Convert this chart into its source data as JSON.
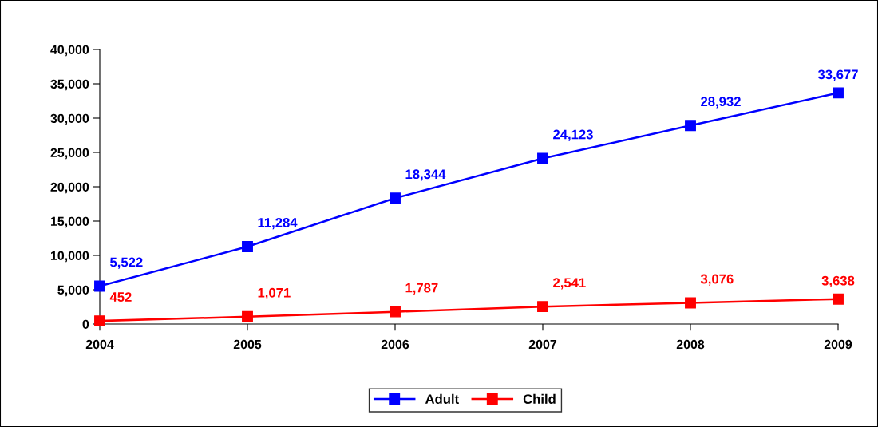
{
  "chart_data": {
    "type": "line",
    "categories": [
      "2004",
      "2005",
      "2006",
      "2007",
      "2008",
      "2009"
    ],
    "series": [
      {
        "name": "Adult",
        "color": "#0000ff",
        "values": [
          5522,
          11284,
          18344,
          24123,
          28932,
          33677
        ],
        "value_labels": [
          "5,522",
          "11,284",
          "18,344",
          "24,123",
          "28,932",
          "33,677"
        ]
      },
      {
        "name": "Child",
        "color": "#ff0000",
        "values": [
          452,
          1071,
          1787,
          2541,
          3076,
          3638
        ],
        "value_labels": [
          "452",
          "1,071",
          "1,787",
          "2,541",
          "3,076",
          "3,638"
        ]
      }
    ],
    "ylim": [
      0,
      40000
    ],
    "yticks": [
      0,
      {
        "value": 5000,
        "label": "5,000"
      },
      {
        "value": 10000,
        "label": "10,000"
      },
      {
        "value": 15000,
        "label": "15,000"
      },
      {
        "value": 20000,
        "label": "20,000"
      },
      {
        "value": 25000,
        "label": "25,000"
      },
      {
        "value": 30000,
        "label": "30,000"
      },
      {
        "value": 35000,
        "label": "35,000"
      },
      {
        "value": 40000,
        "label": "40,000"
      }
    ],
    "grid": false,
    "legend": "bottom",
    "marker": "square",
    "line_style": "solid"
  }
}
